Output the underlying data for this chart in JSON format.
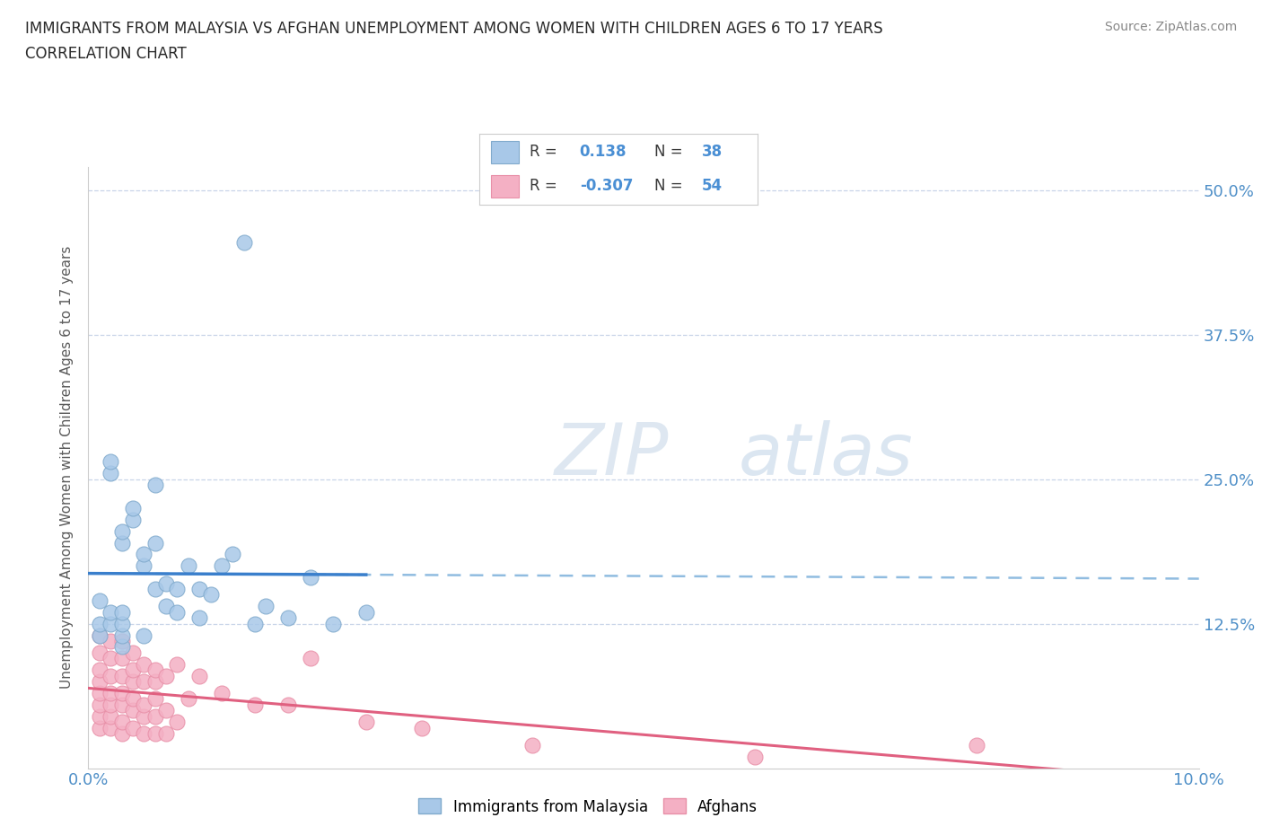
{
  "title_line1": "IMMIGRANTS FROM MALAYSIA VS AFGHAN UNEMPLOYMENT AMONG WOMEN WITH CHILDREN AGES 6 TO 17 YEARS",
  "title_line2": "CORRELATION CHART",
  "source": "Source: ZipAtlas.com",
  "ylabel": "Unemployment Among Women with Children Ages 6 to 17 years",
  "xlim": [
    0.0,
    0.1
  ],
  "ylim": [
    0.0,
    0.52
  ],
  "malaysia_color": "#a8c8e8",
  "afghan_color": "#f4b0c4",
  "malaysia_edge": "#80aacc",
  "afghan_edge": "#e890a8",
  "trend_malaysia_solid_color": "#3a7fcc",
  "trend_malaysia_dash_color": "#90bce0",
  "trend_afghan_color": "#e06080",
  "background_color": "#ffffff",
  "grid_color": "#c8d4e8",
  "watermark_zip": "ZIP",
  "watermark_atlas": "atlas",
  "malaysia_x": [
    0.001,
    0.001,
    0.001,
    0.002,
    0.002,
    0.002,
    0.002,
    0.003,
    0.003,
    0.003,
    0.003,
    0.003,
    0.003,
    0.004,
    0.004,
    0.005,
    0.005,
    0.005,
    0.006,
    0.006,
    0.006,
    0.007,
    0.007,
    0.008,
    0.008,
    0.009,
    0.01,
    0.01,
    0.011,
    0.012,
    0.013,
    0.014,
    0.015,
    0.016,
    0.018,
    0.02,
    0.022,
    0.025
  ],
  "malaysia_y": [
    0.115,
    0.125,
    0.145,
    0.125,
    0.135,
    0.255,
    0.265,
    0.105,
    0.115,
    0.125,
    0.135,
    0.195,
    0.205,
    0.215,
    0.225,
    0.115,
    0.175,
    0.185,
    0.155,
    0.195,
    0.245,
    0.14,
    0.16,
    0.135,
    0.155,
    0.175,
    0.13,
    0.155,
    0.15,
    0.175,
    0.185,
    0.455,
    0.125,
    0.14,
    0.13,
    0.165,
    0.125,
    0.135
  ],
  "afghan_x": [
    0.001,
    0.001,
    0.001,
    0.001,
    0.001,
    0.001,
    0.001,
    0.001,
    0.002,
    0.002,
    0.002,
    0.002,
    0.002,
    0.002,
    0.002,
    0.003,
    0.003,
    0.003,
    0.003,
    0.003,
    0.003,
    0.003,
    0.004,
    0.004,
    0.004,
    0.004,
    0.004,
    0.004,
    0.005,
    0.005,
    0.005,
    0.005,
    0.005,
    0.006,
    0.006,
    0.006,
    0.006,
    0.006,
    0.007,
    0.007,
    0.007,
    0.008,
    0.008,
    0.009,
    0.01,
    0.012,
    0.015,
    0.018,
    0.02,
    0.025,
    0.03,
    0.04,
    0.06,
    0.08
  ],
  "afghan_y": [
    0.035,
    0.045,
    0.055,
    0.065,
    0.075,
    0.085,
    0.1,
    0.115,
    0.035,
    0.045,
    0.055,
    0.065,
    0.08,
    0.095,
    0.11,
    0.03,
    0.04,
    0.055,
    0.065,
    0.08,
    0.095,
    0.11,
    0.035,
    0.05,
    0.06,
    0.075,
    0.085,
    0.1,
    0.03,
    0.045,
    0.055,
    0.075,
    0.09,
    0.03,
    0.045,
    0.06,
    0.075,
    0.085,
    0.03,
    0.05,
    0.08,
    0.04,
    0.09,
    0.06,
    0.08,
    0.065,
    0.055,
    0.055,
    0.095,
    0.04,
    0.035,
    0.02,
    0.01,
    0.02
  ]
}
